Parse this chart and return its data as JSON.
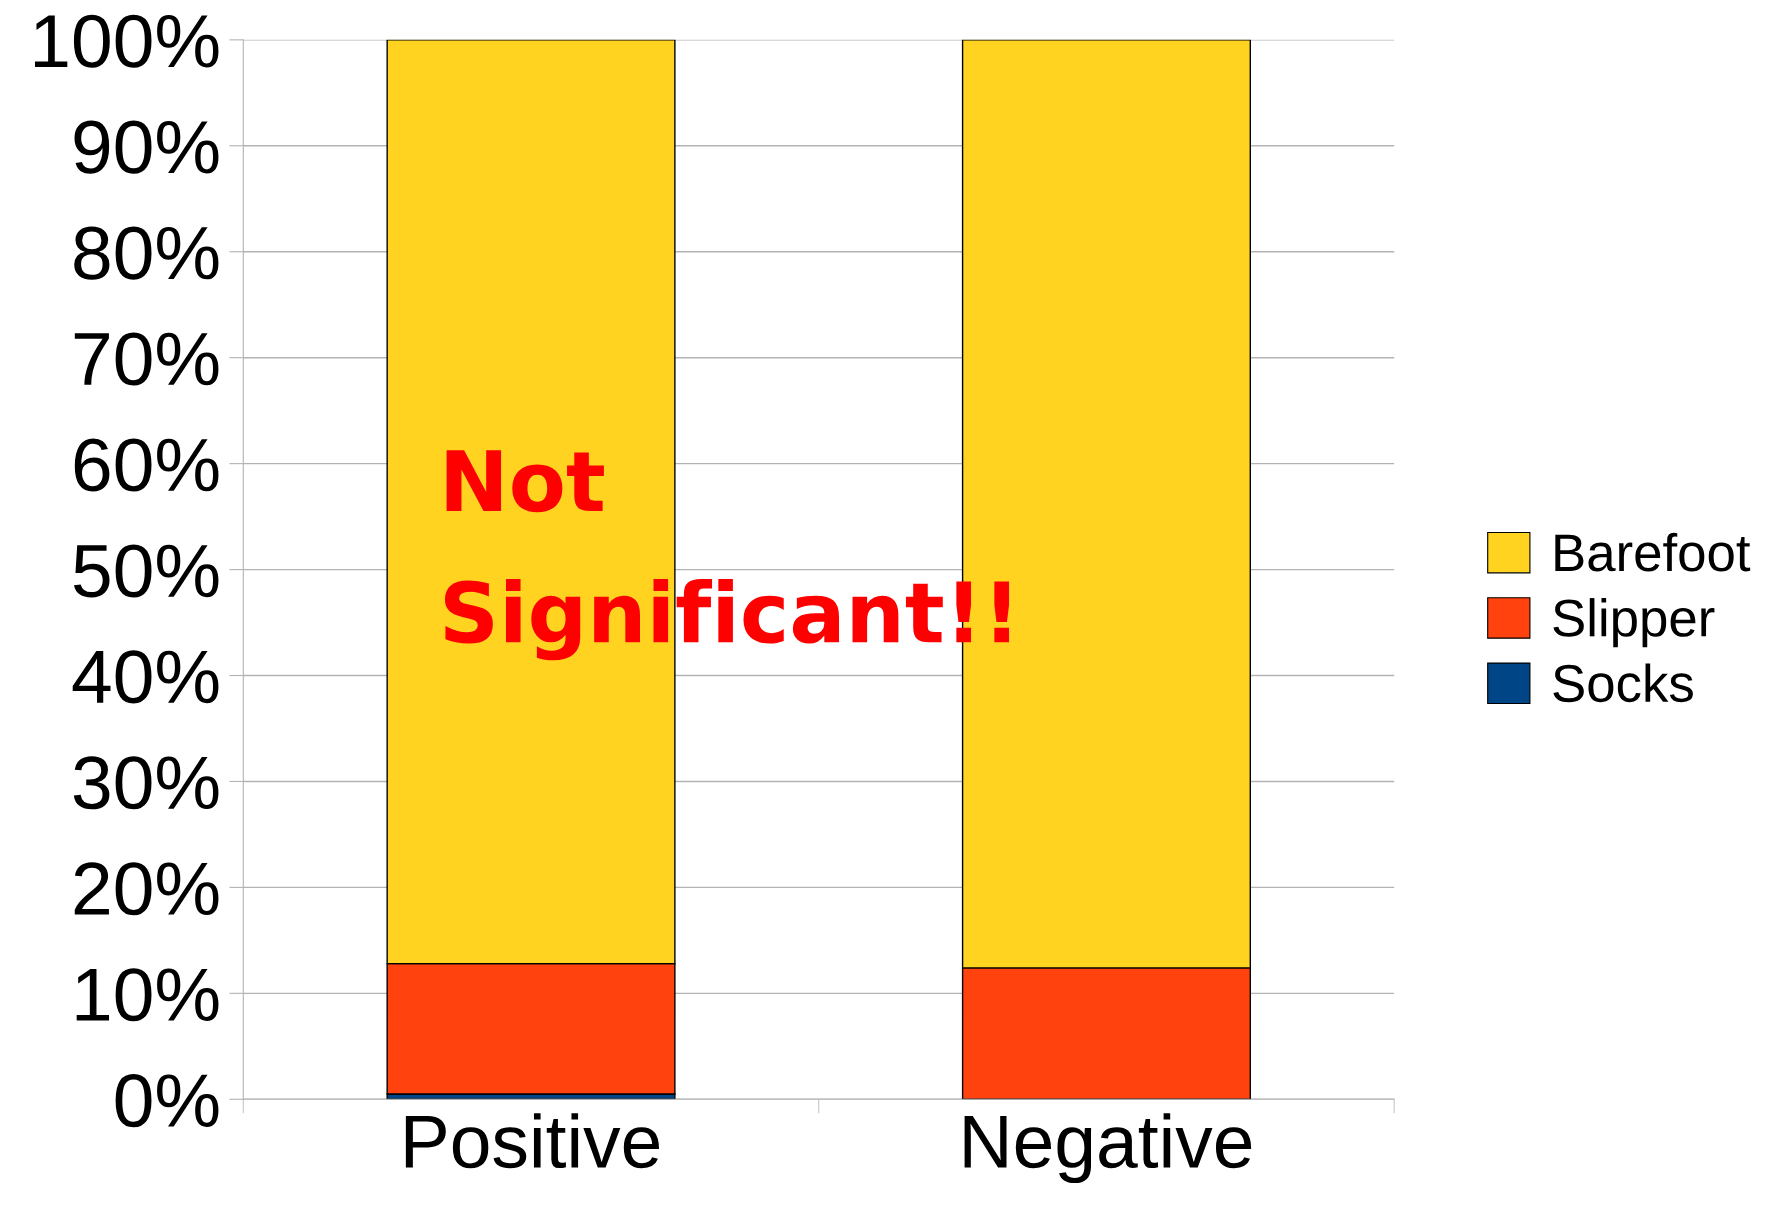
{
  "chart_data": {
    "type": "bar",
    "stacked": true,
    "categories": [
      "Positive",
      "Negative"
    ],
    "series": [
      {
        "name": "Socks",
        "color": "#004586",
        "values": [
          0.5,
          0
        ]
      },
      {
        "name": "Slipper",
        "color": "#ff420e",
        "values": [
          12.3,
          12.4
        ]
      },
      {
        "name": "Barefoot",
        "color": "#ffd320",
        "values": [
          87.2,
          87.6
        ]
      }
    ],
    "ylim": [
      0,
      100
    ],
    "yticks": [
      {
        "value": 0,
        "label": "0%"
      },
      {
        "value": 10,
        "label": "10%"
      },
      {
        "value": 20,
        "label": "20%"
      },
      {
        "value": 30,
        "label": "30%"
      },
      {
        "value": 40,
        "label": "40%"
      },
      {
        "value": 50,
        "label": "50%"
      },
      {
        "value": 60,
        "label": "60%"
      },
      {
        "value": 70,
        "label": "70%"
      },
      {
        "value": 80,
        "label": "80%"
      },
      {
        "value": 90,
        "label": "90%"
      },
      {
        "value": 100,
        "label": "100%"
      }
    ],
    "grid": "y",
    "legend": "right",
    "annotations": [
      "Not\nSignificant!!"
    ]
  }
}
